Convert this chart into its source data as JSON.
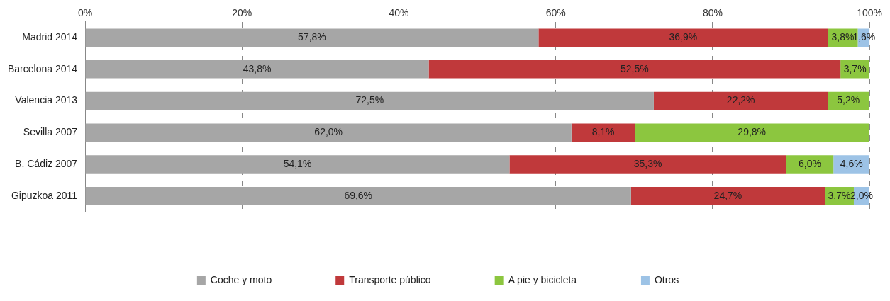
{
  "chart_data": {
    "type": "bar",
    "orientation": "horizontal",
    "stacked": true,
    "categories": [
      "Madrid 2014",
      "Barcelona 2014",
      "Valencia 2013",
      "Sevilla 2007",
      "B. Cádiz 2007",
      "Gipuzkoa 2011"
    ],
    "series": [
      {
        "name": "Coche y moto",
        "color": "#a6a6a6",
        "values": [
          57.8,
          43.8,
          72.5,
          62.0,
          54.1,
          69.6
        ],
        "value_labels": [
          "57,8%",
          "43,8%",
          "72,5%",
          "62,0%",
          "54,1%",
          "69,6%"
        ]
      },
      {
        "name": "Transporte público",
        "color": "#c0393b",
        "values": [
          36.9,
          52.5,
          22.2,
          8.1,
          35.3,
          24.7
        ],
        "value_labels": [
          "36,9%",
          "52,5%",
          "22,2%",
          "8,1%",
          "35,3%",
          "24,7%"
        ]
      },
      {
        "name": "A pie y bicicleta",
        "color": "#8cc63f",
        "values": [
          3.8,
          3.7,
          5.2,
          29.8,
          6.0,
          3.7
        ],
        "value_labels": [
          "3,8%",
          "3,7%",
          "5,2%",
          "29,8%",
          "6,0%",
          "3,7%"
        ]
      },
      {
        "name": "Otros",
        "color": "#9dc3e6",
        "values": [
          1.6,
          null,
          null,
          null,
          4.6,
          2.0
        ],
        "value_labels": [
          "1,6%",
          null,
          null,
          null,
          "4,6%",
          "2,0%"
        ]
      }
    ],
    "xlim": [
      0,
      100
    ],
    "xticks": [
      {
        "value": 0,
        "label": "0%"
      },
      {
        "value": 20,
        "label": "20%"
      },
      {
        "value": 40,
        "label": "40%"
      },
      {
        "value": 60,
        "label": "60%"
      },
      {
        "value": 80,
        "label": "80%"
      },
      {
        "value": 100,
        "label": "100%"
      }
    ],
    "grid": "x",
    "legend": "bottom"
  }
}
